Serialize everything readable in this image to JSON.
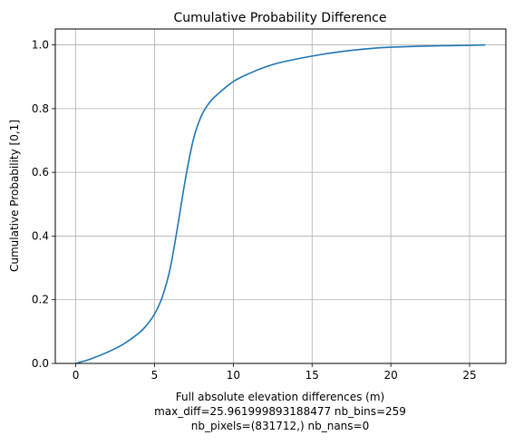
{
  "chart_data": {
    "type": "line",
    "title": "Cumulative Probability Difference",
    "xlabel": "Full absolute elevation differences (m)",
    "xlabel_extra": [
      "max_diff=25.961999893188477 nb_bins=259",
      "nb_pixels=(831712,) nb_nans=0"
    ],
    "ylabel": "Cumulative Probability [0,1]",
    "xlim": [
      -1.3,
      27.3
    ],
    "ylim": [
      0,
      1.05
    ],
    "xticks": [
      0,
      5,
      10,
      15,
      20,
      25
    ],
    "xtick_labels": [
      "0",
      "5",
      "10",
      "15",
      "20",
      "25"
    ],
    "yticks": [
      0,
      0.2,
      0.4,
      0.6,
      0.8,
      1.0
    ],
    "ytick_labels": [
      "0.0",
      "0.2",
      "0.4",
      "0.6",
      "0.8",
      "1.0"
    ],
    "grid": true,
    "line_color": "#1f77b4",
    "series": [
      {
        "x": [
          0,
          1,
          2,
          3,
          4,
          4.5,
          5,
          5.5,
          6,
          6.5,
          7,
          7.5,
          8,
          8.5,
          9,
          10,
          11,
          12,
          13,
          15,
          17,
          19,
          20,
          22,
          24,
          26
        ],
        "y": [
          0,
          0.015,
          0.035,
          0.06,
          0.095,
          0.12,
          0.155,
          0.21,
          0.3,
          0.44,
          0.59,
          0.71,
          0.78,
          0.82,
          0.845,
          0.885,
          0.91,
          0.93,
          0.945,
          0.965,
          0.98,
          0.99,
          0.993,
          0.996,
          0.998,
          1.0
        ]
      }
    ]
  }
}
